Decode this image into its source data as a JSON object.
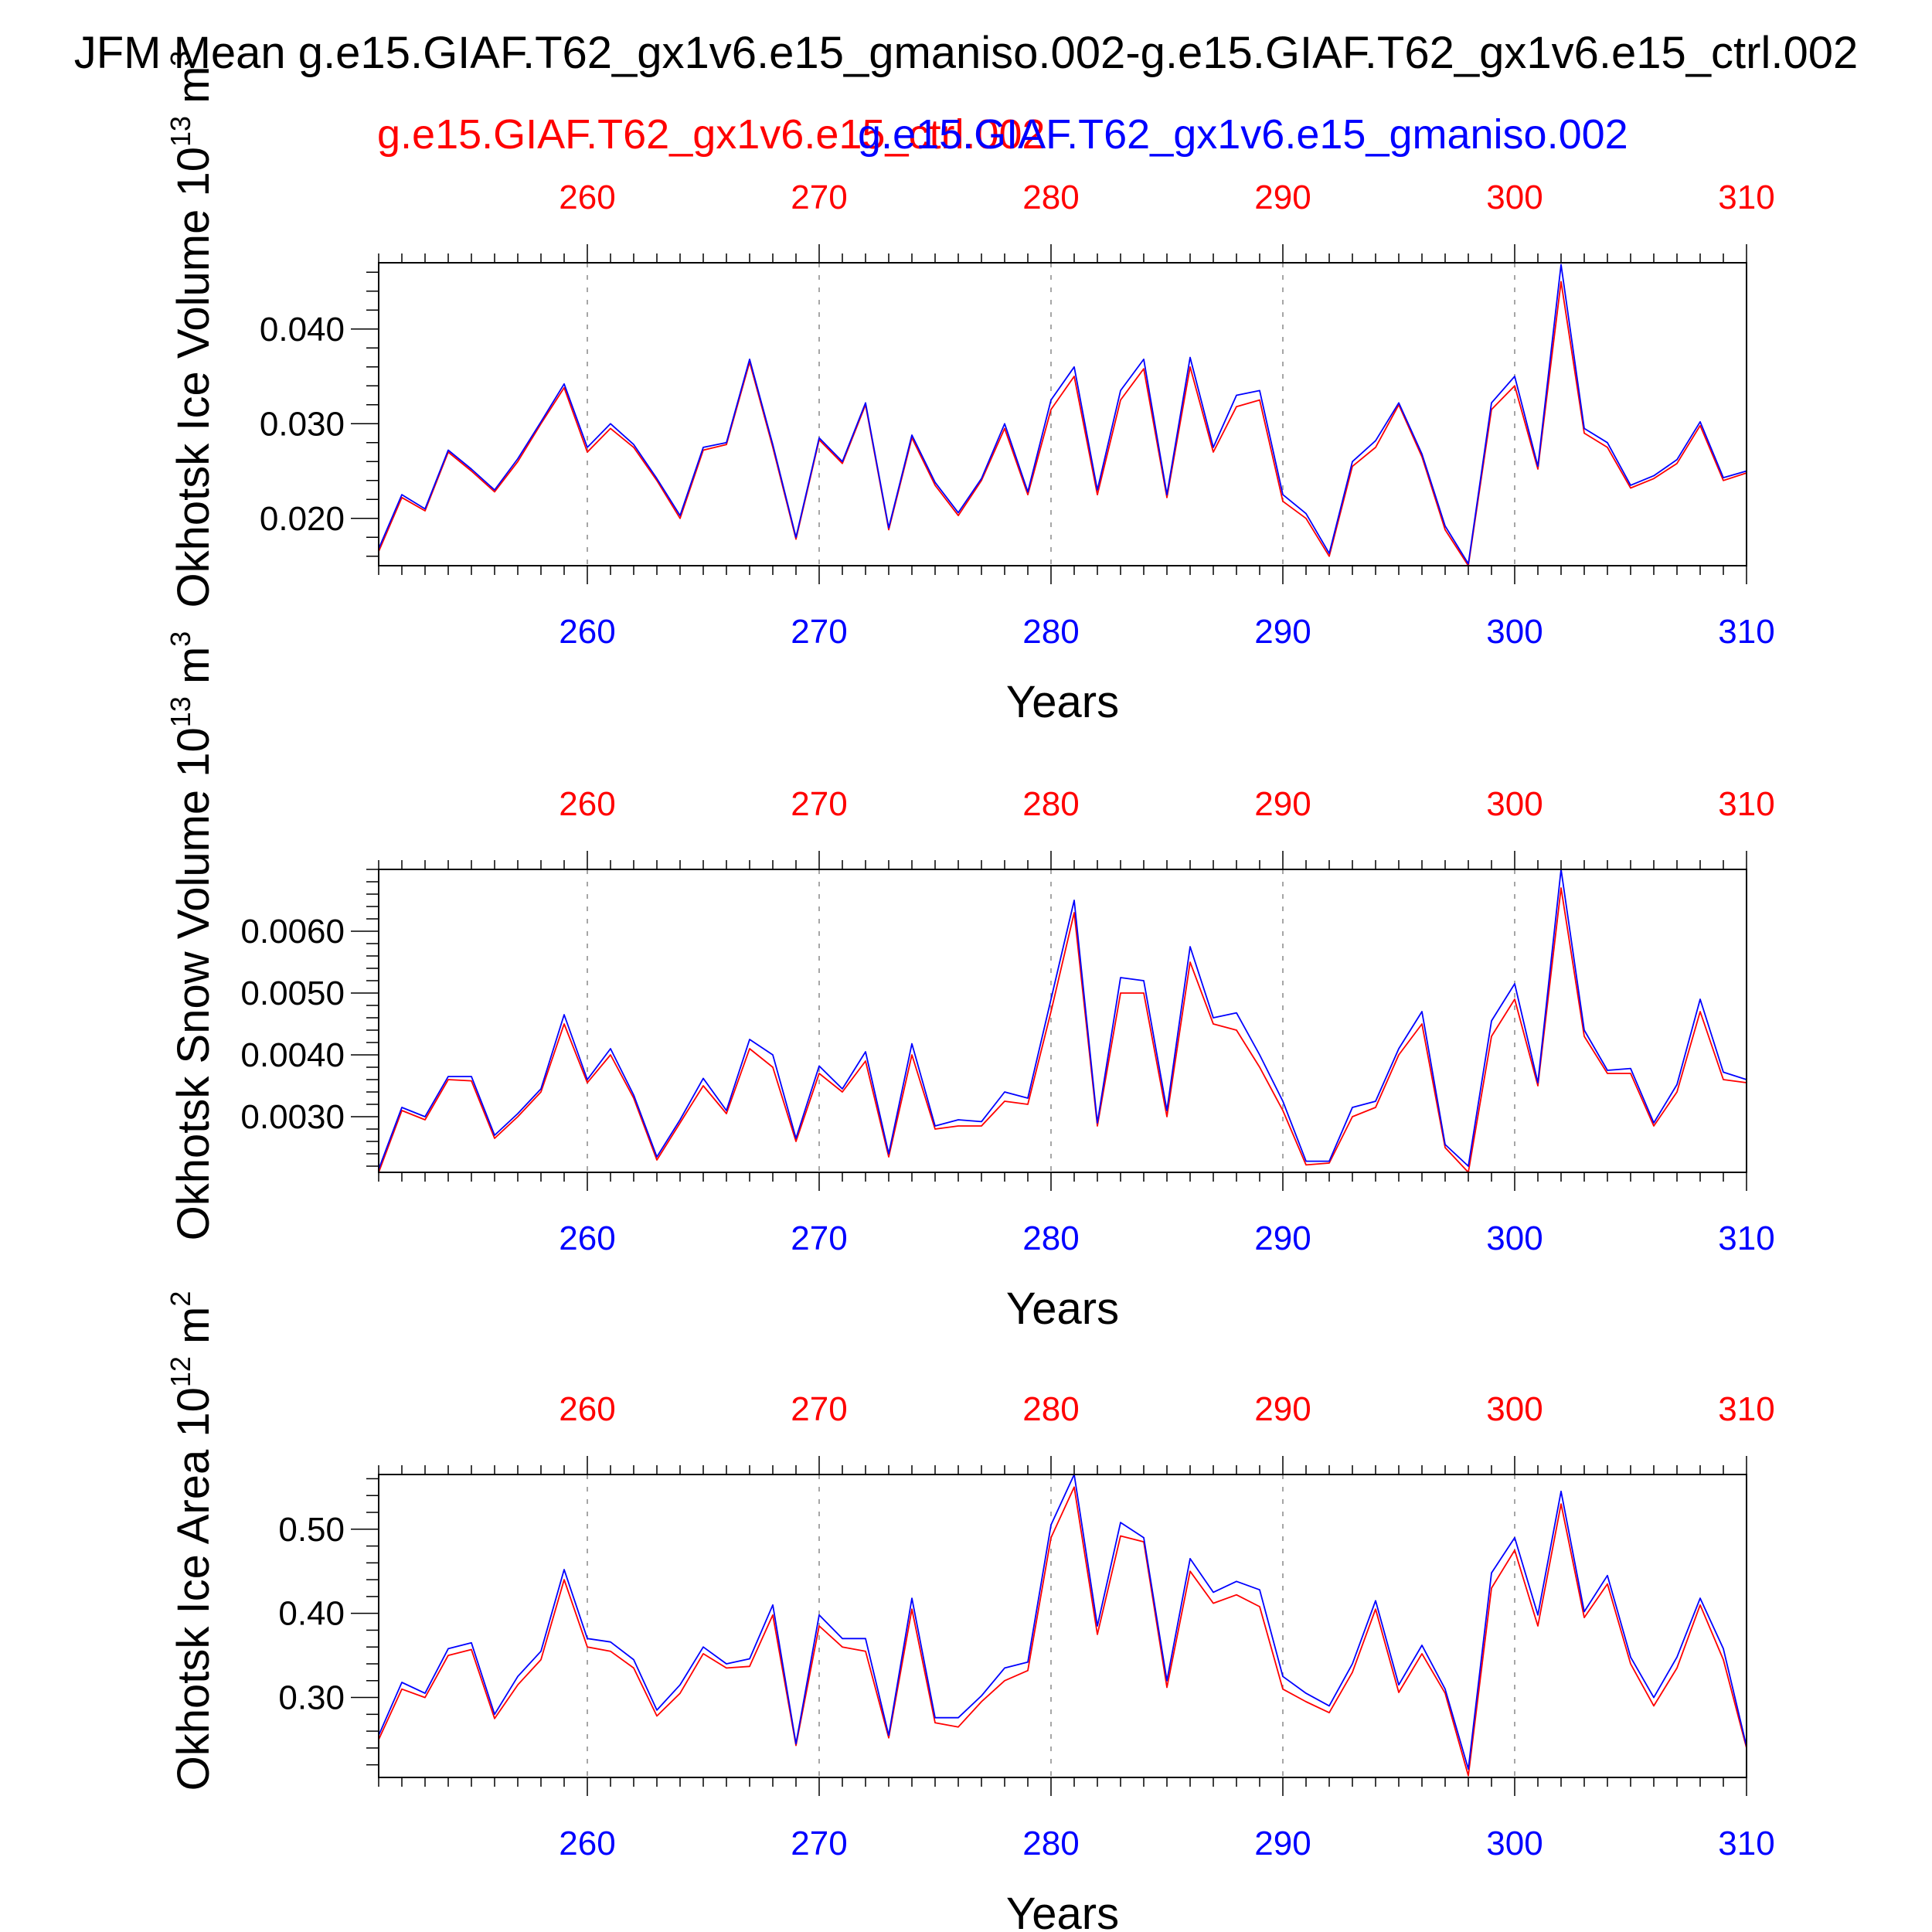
{
  "page": {
    "title": "JFM Mean g.e15.GIAF.T62_gx1v6.e15_gmaniso.002-g.e15.GIAF.T62_gx1v6.e15_ctrl.002",
    "subtitle_red": "g.e15.GIAF.T62_gx1v6.e15_ctrl.002",
    "subtitle_blue": "g.e15.GIAF.T62_gx1v6.e15_gmaniso.002"
  },
  "colors": {
    "red": "#ff0000",
    "blue": "#0000ff",
    "axis": "#000000",
    "grid": "#888888"
  },
  "chart_data": [
    {
      "type": "line",
      "ylabel": "Okhotsk Ice Volume 10",
      "ylabel_exp": "13",
      "ylabel_unit": " m",
      "ylabel_unit_exp": "3",
      "xlabel": "Years",
      "xlim": [
        251,
        310
      ],
      "ylim": [
        0.015,
        0.047
      ],
      "yticks": [
        0.02,
        0.03,
        0.04
      ],
      "ytick_labels": [
        "0.020",
        "0.030",
        "0.040"
      ],
      "yminor": 0.002,
      "xticks": [
        260,
        270,
        280,
        290,
        300,
        310
      ],
      "xtick_labels": [
        "260",
        "270",
        "280",
        "290",
        "300",
        "310"
      ],
      "x_start": 251,
      "series": [
        {
          "name": "g.e15.GIAF.T62_gx1v6.e15_ctrl.002",
          "color": "red",
          "values": [
            0.0165,
            0.0222,
            0.0208,
            0.027,
            0.025,
            0.0228,
            0.026,
            0.03,
            0.0338,
            0.027,
            0.0295,
            0.0275,
            0.024,
            0.02,
            0.0272,
            0.0278,
            0.0365,
            0.0275,
            0.0178,
            0.0283,
            0.0258,
            0.032,
            0.0188,
            0.0285,
            0.0235,
            0.0203,
            0.024,
            0.0295,
            0.0225,
            0.0315,
            0.035,
            0.0225,
            0.0325,
            0.0358,
            0.0222,
            0.036,
            0.027,
            0.0318,
            0.0325,
            0.0218,
            0.02,
            0.016,
            0.0255,
            0.0275,
            0.032,
            0.0265,
            0.0188,
            0.015,
            0.0315,
            0.034,
            0.0252,
            0.045,
            0.029,
            0.0275,
            0.0232,
            0.0242,
            0.0258,
            0.0298,
            0.024,
            0.0248
          ]
        },
        {
          "name": "g.e15.GIAF.T62_gx1v6.e15_gmaniso.002",
          "color": "blue",
          "values": [
            0.0168,
            0.0225,
            0.021,
            0.0272,
            0.0252,
            0.023,
            0.0263,
            0.0302,
            0.0342,
            0.0275,
            0.03,
            0.0278,
            0.0242,
            0.0203,
            0.0275,
            0.028,
            0.0368,
            0.0278,
            0.018,
            0.0285,
            0.026,
            0.0322,
            0.019,
            0.0288,
            0.0238,
            0.0206,
            0.0242,
            0.03,
            0.0228,
            0.0325,
            0.036,
            0.023,
            0.0335,
            0.0368,
            0.0225,
            0.037,
            0.0275,
            0.033,
            0.0335,
            0.0225,
            0.0205,
            0.0163,
            0.026,
            0.0282,
            0.0322,
            0.0268,
            0.0192,
            0.0152,
            0.0322,
            0.035,
            0.0255,
            0.0468,
            0.0295,
            0.028,
            0.0235,
            0.0245,
            0.0262,
            0.0302,
            0.0243,
            0.025
          ]
        }
      ]
    },
    {
      "type": "line",
      "ylabel": "Okhotsk Snow Volume 10",
      "ylabel_exp": "13",
      "ylabel_unit": " m",
      "ylabel_unit_exp": "3",
      "xlabel": "Years",
      "xlim": [
        251,
        310
      ],
      "ylim": [
        0.0021,
        0.007
      ],
      "yticks": [
        0.003,
        0.004,
        0.005,
        0.006
      ],
      "ytick_labels": [
        "0.0030",
        "0.0040",
        "0.0050",
        "0.0060"
      ],
      "yminor": 0.0002,
      "xticks": [
        260,
        270,
        280,
        290,
        300,
        310
      ],
      "xtick_labels": [
        "260",
        "270",
        "280",
        "290",
        "300",
        "310"
      ],
      "x_start": 251,
      "series": [
        {
          "name": "g.e15.GIAF.T62_gx1v6.e15_ctrl.002",
          "color": "red",
          "values": [
            0.0021,
            0.0031,
            0.00295,
            0.0036,
            0.00358,
            0.00265,
            0.003,
            0.0034,
            0.0045,
            0.00355,
            0.004,
            0.0033,
            0.0023,
            0.0029,
            0.0035,
            0.00305,
            0.0041,
            0.0038,
            0.0026,
            0.0037,
            0.0034,
            0.0039,
            0.00235,
            0.004,
            0.0028,
            0.00285,
            0.00285,
            0.00325,
            0.0032,
            0.0047,
            0.0063,
            0.00285,
            0.005,
            0.005,
            0.003,
            0.0055,
            0.0045,
            0.0044,
            0.0038,
            0.0031,
            0.00222,
            0.00225,
            0.003,
            0.00315,
            0.004,
            0.0045,
            0.0025,
            0.0021,
            0.0043,
            0.0049,
            0.0035,
            0.0067,
            0.0043,
            0.0037,
            0.0037,
            0.00285,
            0.0034,
            0.0047,
            0.0036,
            0.00355
          ]
        },
        {
          "name": "g.e15.GIAF.T62_gx1v6.e15_gmaniso.002",
          "color": "blue",
          "values": [
            0.00215,
            0.00315,
            0.003,
            0.00365,
            0.00365,
            0.0027,
            0.00305,
            0.00345,
            0.00465,
            0.0036,
            0.0041,
            0.00335,
            0.00235,
            0.00295,
            0.00362,
            0.0031,
            0.00425,
            0.004,
            0.00265,
            0.00382,
            0.00345,
            0.00405,
            0.0024,
            0.00418,
            0.00285,
            0.00295,
            0.00292,
            0.0034,
            0.0033,
            0.0049,
            0.0065,
            0.0029,
            0.00525,
            0.0052,
            0.0031,
            0.00575,
            0.0046,
            0.00468,
            0.004,
            0.00325,
            0.00228,
            0.00228,
            0.00315,
            0.00325,
            0.0041,
            0.0047,
            0.00255,
            0.0022,
            0.00455,
            0.00515,
            0.00355,
            0.007,
            0.0044,
            0.00375,
            0.00378,
            0.0029,
            0.00352,
            0.0049,
            0.00372,
            0.0036
          ]
        }
      ]
    },
    {
      "type": "line",
      "ylabel": "Okhotsk Ice Area 10",
      "ylabel_exp": "12",
      "ylabel_unit": " m",
      "ylabel_unit_exp": "2",
      "xlabel": "Years",
      "xlim": [
        251,
        310
      ],
      "ylim": [
        0.205,
        0.565
      ],
      "yticks": [
        0.3,
        0.4,
        0.5
      ],
      "ytick_labels": [
        "0.30",
        "0.40",
        "0.50"
      ],
      "yminor": 0.02,
      "xticks": [
        260,
        270,
        280,
        290,
        300,
        310
      ],
      "xtick_labels": [
        "260",
        "270",
        "280",
        "290",
        "300",
        "310"
      ],
      "x_start": 251,
      "series": [
        {
          "name": "g.e15.GIAF.T62_gx1v6.e15_ctrl.002",
          "color": "red",
          "values": [
            0.25,
            0.31,
            0.3,
            0.35,
            0.357,
            0.275,
            0.315,
            0.345,
            0.44,
            0.36,
            0.355,
            0.335,
            0.278,
            0.305,
            0.352,
            0.335,
            0.337,
            0.398,
            0.243,
            0.385,
            0.36,
            0.355,
            0.252,
            0.405,
            0.27,
            0.265,
            0.295,
            0.32,
            0.332,
            0.49,
            0.55,
            0.375,
            0.492,
            0.485,
            0.312,
            0.45,
            0.412,
            0.422,
            0.408,
            0.31,
            0.295,
            0.282,
            0.33,
            0.405,
            0.306,
            0.352,
            0.305,
            0.207,
            0.43,
            0.475,
            0.385,
            0.53,
            0.395,
            0.435,
            0.34,
            0.29,
            0.335,
            0.41,
            0.345,
            0.24
          ]
        },
        {
          "name": "g.e15.GIAF.T62_gx1v6.e15_gmaniso.002",
          "color": "blue",
          "values": [
            0.255,
            0.318,
            0.305,
            0.358,
            0.365,
            0.28,
            0.325,
            0.355,
            0.452,
            0.37,
            0.366,
            0.345,
            0.285,
            0.315,
            0.36,
            0.34,
            0.346,
            0.41,
            0.245,
            0.398,
            0.37,
            0.37,
            0.255,
            0.418,
            0.276,
            0.276,
            0.302,
            0.335,
            0.342,
            0.505,
            0.565,
            0.385,
            0.508,
            0.49,
            0.32,
            0.465,
            0.425,
            0.438,
            0.428,
            0.325,
            0.305,
            0.29,
            0.34,
            0.415,
            0.315,
            0.362,
            0.31,
            0.215,
            0.448,
            0.49,
            0.398,
            0.545,
            0.402,
            0.445,
            0.348,
            0.3,
            0.348,
            0.418,
            0.358,
            0.242
          ]
        }
      ]
    }
  ]
}
